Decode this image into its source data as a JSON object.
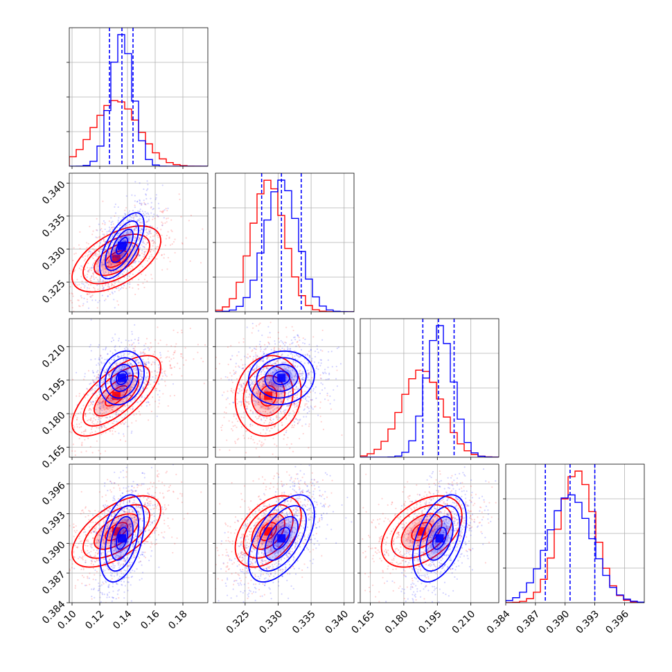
{
  "chart_data": {
    "type": "scatter",
    "subtype": "corner-plot",
    "parameters": 4,
    "grid": true,
    "series": [
      {
        "color": "#ff0000",
        "means": [
          0.132,
          0.3285,
          0.188,
          0.3912
        ],
        "stds": [
          0.016,
          0.0025,
          0.009,
          0.0018
        ]
      },
      {
        "color": "#0000ff",
        "means": [
          0.136,
          0.3305,
          0.196,
          0.3905
        ],
        "stds": [
          0.008,
          0.0025,
          0.006,
          0.0022
        ]
      }
    ],
    "quantile_lines": {
      "color": "#0000ff",
      "values": [
        [
          0.127,
          0.136,
          0.144
        ],
        [
          0.3275,
          0.3305,
          0.3335
        ],
        [
          0.1885,
          0.1955,
          0.2025
        ],
        [
          0.388,
          0.3905,
          0.393
        ]
      ]
    },
    "axes": [
      {
        "range": [
          0.098,
          0.198
        ],
        "ticks": [
          0.1,
          0.12,
          0.14,
          0.16,
          0.18
        ],
        "tick_labels": [
          "0.10",
          "0.12",
          "0.14",
          "0.16",
          "0.18"
        ]
      },
      {
        "range": [
          0.3205,
          0.3415
        ],
        "ticks": [
          0.325,
          0.33,
          0.335,
          0.34
        ],
        "tick_labels": [
          "0.325",
          "0.330",
          "0.335",
          "0.340"
        ]
      },
      {
        "range": [
          0.1605,
          0.2225
        ],
        "ticks": [
          0.165,
          0.18,
          0.195,
          0.21
        ],
        "tick_labels": [
          "0.165",
          "0.180",
          "0.195",
          "0.210"
        ]
      },
      {
        "range": [
          0.384,
          0.398
        ],
        "ticks": [
          0.384,
          0.387,
          0.39,
          0.393,
          0.396
        ],
        "tick_labels": [
          "0.384",
          "0.387",
          "0.390",
          "0.393",
          "0.396"
        ]
      }
    ],
    "contours": [
      {
        "row": 1,
        "col": 0,
        "red": {
          "rho": 0.55
        },
        "blue": {
          "rho": 0.65
        }
      },
      {
        "row": 2,
        "col": 0,
        "red": {
          "rho": 0.7
        },
        "blue": {
          "rho": 0.2
        }
      },
      {
        "row": 2,
        "col": 1,
        "red": {
          "rho": 0.1
        },
        "blue": {
          "rho": 0.1
        }
      },
      {
        "row": 3,
        "col": 0,
        "red": {
          "rho": 0.6
        },
        "blue": {
          "rho": 0.4
        }
      },
      {
        "row": 3,
        "col": 1,
        "red": {
          "rho": 0.45
        },
        "blue": {
          "rho": 0.55
        }
      },
      {
        "row": 3,
        "col": 2,
        "red": {
          "rho": 0.45
        },
        "blue": {
          "rho": 0.45
        }
      }
    ]
  }
}
